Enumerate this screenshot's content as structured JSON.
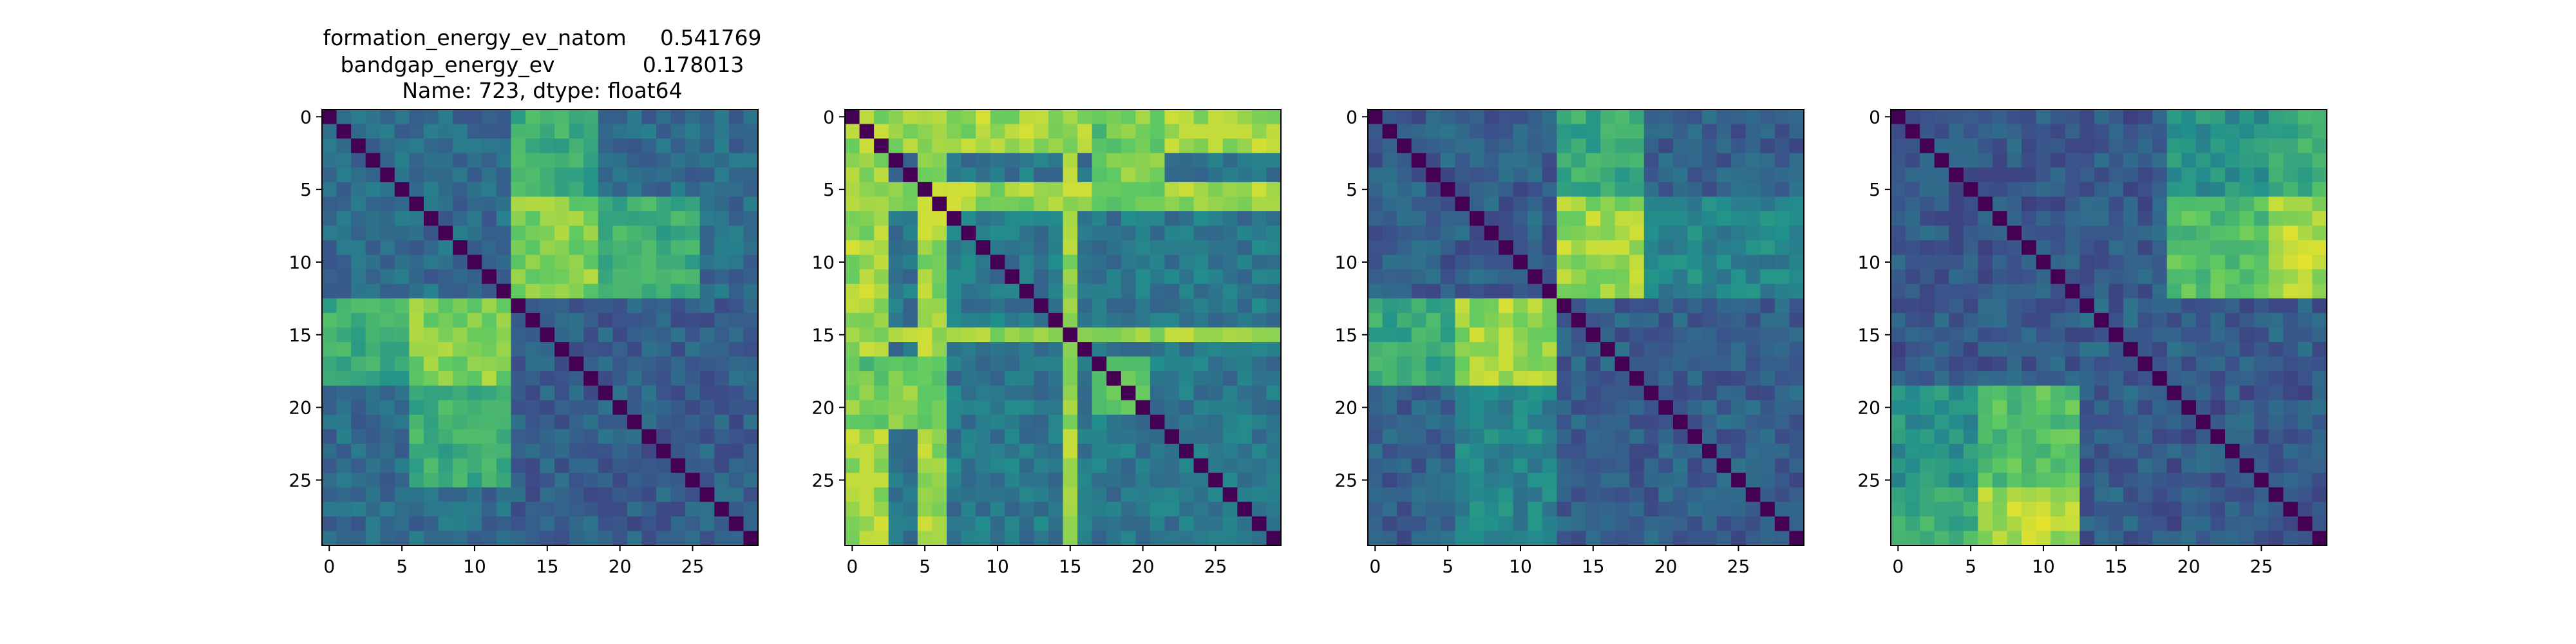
{
  "figure": {
    "title_lines": [
      "formation_energy_ev_natom     0.541769",
      "bandgap_energy_ev             0.178013",
      "Name: 723, dtype: float64"
    ]
  },
  "chart_data": [
    {
      "type": "heatmap",
      "title": "",
      "size": 30,
      "colormap": "viridis",
      "xticks": [
        0,
        5,
        10,
        15,
        20,
        25
      ],
      "yticks": [
        0,
        5,
        10,
        15,
        20,
        25
      ],
      "xlim": [
        -0.5,
        29.5
      ],
      "ylim": [
        29.5,
        -0.5
      ],
      "diagonal": 0.0,
      "base": 0.35,
      "blocks": [
        {
          "rows": [
            13,
            17
          ],
          "cols": [
            6,
            12
          ],
          "value": 0.8
        },
        {
          "rows": [
            6,
            12
          ],
          "cols": [
            13,
            18
          ],
          "value": 0.8
        },
        {
          "rows": [
            18,
            23
          ],
          "cols": [
            6,
            12
          ],
          "value": 0.62
        },
        {
          "rows": [
            6,
            12
          ],
          "cols": [
            19,
            25
          ],
          "value": 0.62
        },
        {
          "rows": [
            13,
            17
          ],
          "cols": [
            0,
            5
          ],
          "value": 0.62
        },
        {
          "rows": [
            0,
            5
          ],
          "cols": [
            13,
            18
          ],
          "value": 0.55
        },
        {
          "rows": [
            13,
            29
          ],
          "cols": [
            13,
            29
          ],
          "value": 0.3
        }
      ]
    },
    {
      "type": "heatmap",
      "title": "",
      "size": 30,
      "colormap": "viridis",
      "xticks": [
        0,
        5,
        10,
        15,
        20,
        25
      ],
      "yticks": [
        0,
        5,
        10,
        15,
        20,
        25
      ],
      "xlim": [
        -0.5,
        29.5
      ],
      "ylim": [
        29.5,
        -0.5
      ],
      "diagonal": 0.0,
      "base": 0.4,
      "bright_rows": [
        0,
        1,
        2,
        5,
        6,
        15
      ],
      "bright_cols": [
        0,
        1,
        2,
        5,
        6,
        15
      ],
      "bright_value": 0.85,
      "blocks": [
        {
          "rows": [
            17,
            20
          ],
          "cols": [
            18,
            20
          ],
          "value": 0.7
        },
        {
          "rows": [
            0,
            6
          ],
          "cols": [
            18,
            21
          ],
          "value": 0.78
        },
        {
          "rows": [
            17,
            20
          ],
          "cols": [
            0,
            6
          ],
          "value": 0.72
        }
      ]
    },
    {
      "type": "heatmap",
      "title": "",
      "size": 30,
      "colormap": "viridis",
      "xticks": [
        0,
        5,
        10,
        15,
        20,
        25
      ],
      "yticks": [
        0,
        5,
        10,
        15,
        20,
        25
      ],
      "xlim": [
        -0.5,
        29.5
      ],
      "ylim": [
        29.5,
        -0.5
      ],
      "diagonal": 0.0,
      "base": 0.3,
      "blocks": [
        {
          "rows": [
            6,
            12
          ],
          "cols": [
            13,
            18
          ],
          "value": 0.85
        },
        {
          "rows": [
            13,
            18
          ],
          "cols": [
            6,
            12
          ],
          "value": 0.85
        },
        {
          "rows": [
            0,
            5
          ],
          "cols": [
            13,
            18
          ],
          "value": 0.6
        },
        {
          "rows": [
            13,
            18
          ],
          "cols": [
            0,
            5
          ],
          "value": 0.6
        },
        {
          "rows": [
            19,
            29
          ],
          "cols": [
            6,
            12
          ],
          "value": 0.45
        }
      ]
    },
    {
      "type": "heatmap",
      "title": "",
      "size": 30,
      "colormap": "viridis",
      "xticks": [
        0,
        5,
        10,
        15,
        20,
        25
      ],
      "yticks": [
        0,
        5,
        10,
        15,
        20,
        25
      ],
      "xlim": [
        -0.5,
        29.5
      ],
      "ylim": [
        29.5,
        -0.5
      ],
      "diagonal": 0.0,
      "base": 0.28,
      "blocks": [
        {
          "rows": [
            6,
            12
          ],
          "cols": [
            26,
            29
          ],
          "value": 0.88
        },
        {
          "rows": [
            6,
            12
          ],
          "cols": [
            19,
            25
          ],
          "value": 0.7
        },
        {
          "rows": [
            19,
            29
          ],
          "cols": [
            6,
            12
          ],
          "value": 0.8
        },
        {
          "rows": [
            26,
            29
          ],
          "cols": [
            0,
            5
          ],
          "value": 0.62
        },
        {
          "rows": [
            0,
            5
          ],
          "cols": [
            19,
            29
          ],
          "value": 0.5
        },
        {
          "rows": [
            19,
            29
          ],
          "cols": [
            0,
            5
          ],
          "value": 0.5
        },
        {
          "rows": [
            13,
            18
          ],
          "cols": [
            13,
            29
          ],
          "value": 0.3
        }
      ]
    }
  ]
}
